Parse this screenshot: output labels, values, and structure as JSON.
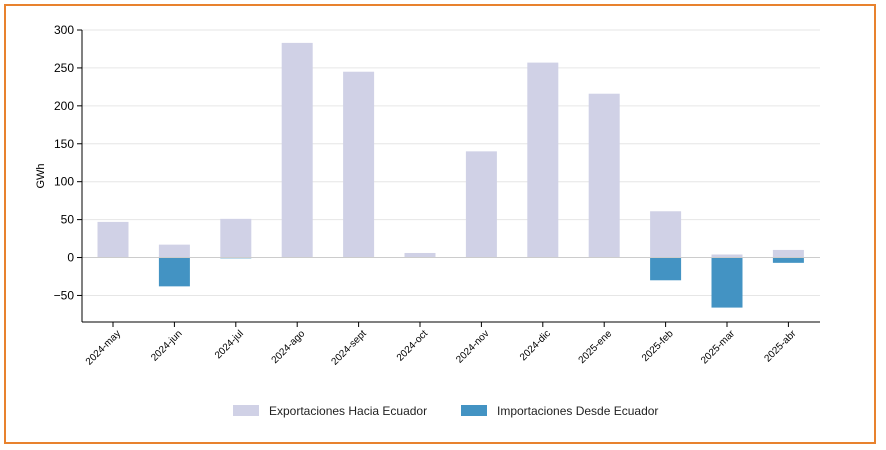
{
  "frame_color": "#e8822e",
  "chart_data": {
    "type": "bar",
    "ylabel": "GWh",
    "ylim": [
      -85,
      300
    ],
    "yticks": [
      300,
      250,
      200,
      150,
      100,
      50,
      0,
      -50
    ],
    "ytick_labels": [
      "300",
      "250",
      "200",
      "150",
      "100",
      "50",
      "0",
      "−50"
    ],
    "grid": true,
    "legend_position": "bottom",
    "categories": [
      "2024-may",
      "2024-jun",
      "2024-jul",
      "2024-ago",
      "2024-sept",
      "2024-oct",
      "2024-nov",
      "2024-dic",
      "2025-ene",
      "2025-feb",
      "2025-mar",
      "2025-abr"
    ],
    "series": [
      {
        "name": "Exportaciones Hacia Ecuador",
        "color": "#d0d1e6",
        "values": [
          47,
          17,
          51,
          283,
          245,
          6,
          140,
          257,
          216,
          61,
          4,
          10
        ]
      },
      {
        "name": "Importaciones Desde Ecuador",
        "color": "#4393c3",
        "values": [
          0,
          -38,
          -1,
          0,
          0,
          0,
          0,
          0,
          0,
          -30,
          -66,
          -7
        ]
      }
    ]
  }
}
